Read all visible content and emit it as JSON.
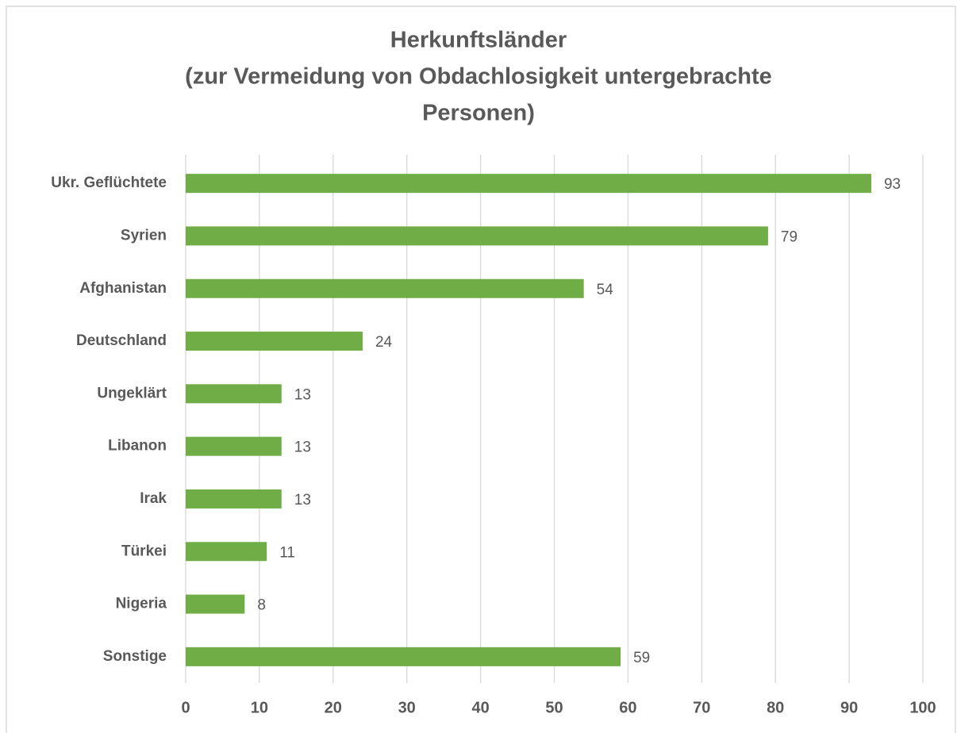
{
  "chart_data": {
    "type": "bar",
    "orientation": "horizontal",
    "title": [
      "Herkunftsländer",
      "(zur Vermeidung von Obdachlosigkeit untergebrachte",
      "Personen)"
    ],
    "categories": [
      "Ukr. Geflüchtete",
      "Syrien",
      "Afghanistan",
      "Deutschland",
      "Ungeklärt",
      "Libanon",
      "Irak",
      "Türkei",
      "Nigeria",
      "Sonstige"
    ],
    "values": [
      93,
      79,
      54,
      24,
      13,
      13,
      13,
      11,
      8,
      59
    ],
    "color": "#70ad47",
    "xlim": [
      0,
      100
    ],
    "xticks": [
      0,
      10,
      20,
      30,
      40,
      50,
      60,
      70,
      80,
      90,
      100
    ],
    "grid": true
  }
}
